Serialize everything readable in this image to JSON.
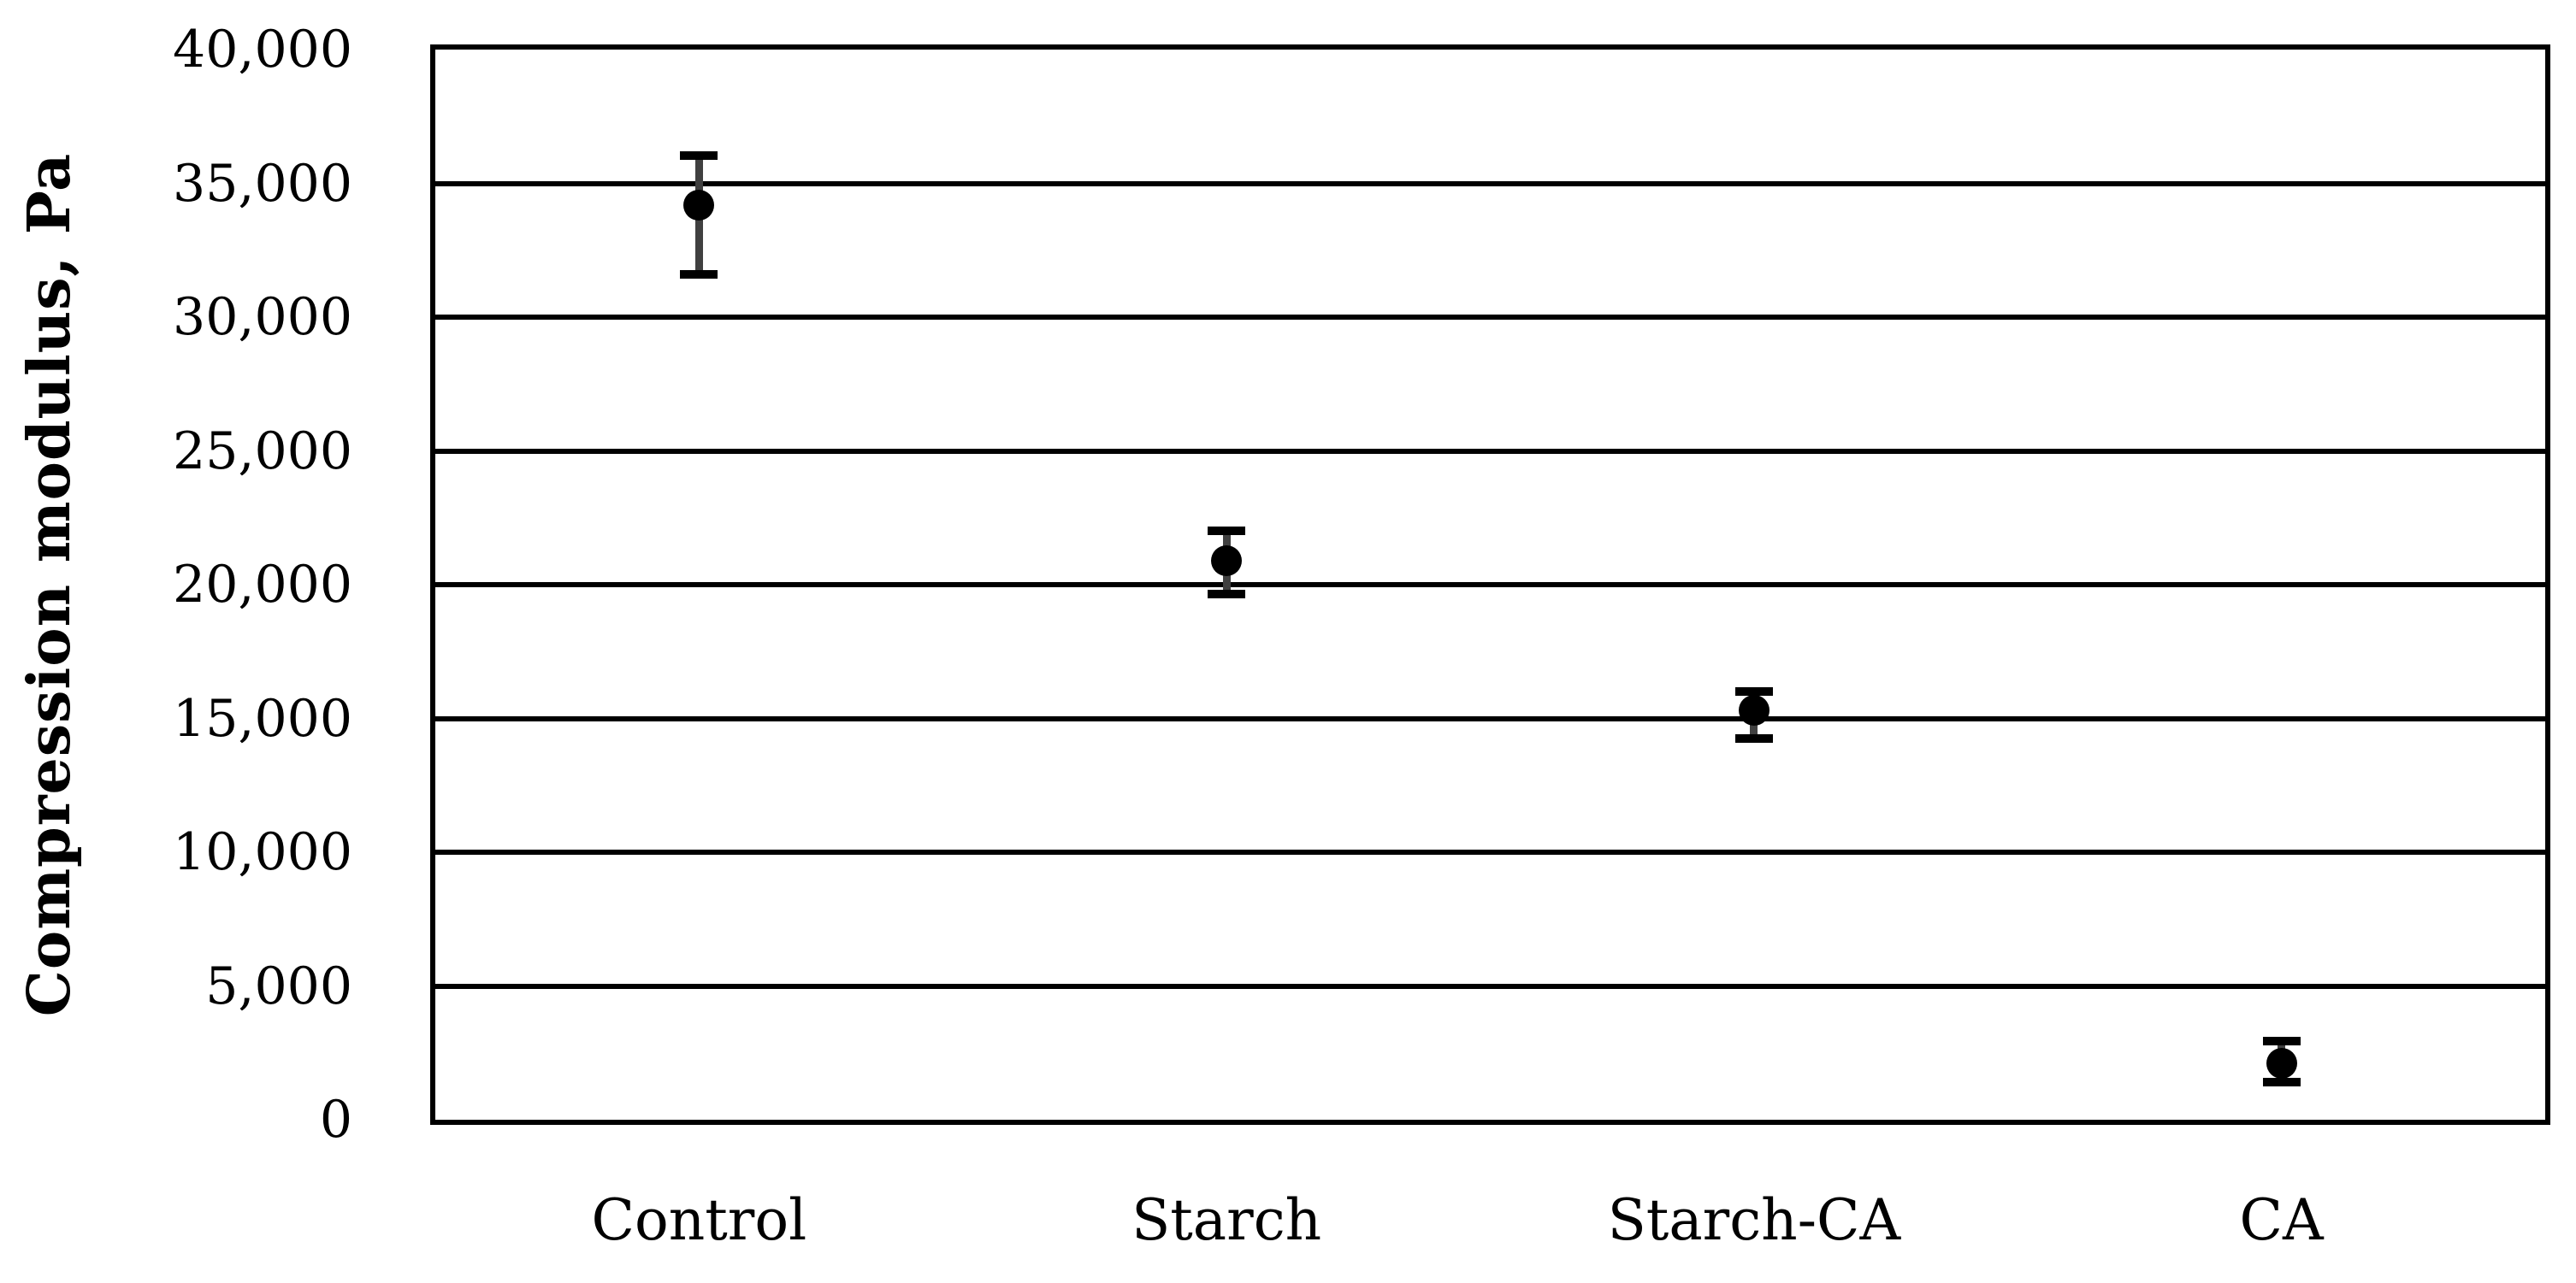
{
  "chart_data": {
    "type": "scatter",
    "title": "",
    "xlabel": "",
    "ylabel": "Compression modulus, Pa",
    "categories": [
      "Control",
      "Starch",
      "Starch-CA",
      "CA"
    ],
    "points": [
      {
        "category": "Control",
        "value": 34200,
        "error_plus": 1850,
        "error_minus": 2600
      },
      {
        "category": "Starch",
        "value": 20900,
        "error_plus": 1100,
        "error_minus": 1250
      },
      {
        "category": "Starch-CA",
        "value": 15300,
        "error_plus": 700,
        "error_minus": 1050
      },
      {
        "category": "CA",
        "value": 2100,
        "error_plus": 850,
        "error_minus": 700
      }
    ],
    "ylim": [
      0,
      40000
    ],
    "ytick_step": 5000,
    "ytick_labels": [
      "0",
      "5,000",
      "10,000",
      "15,000",
      "20,000",
      "25,000",
      "30,000",
      "35,000",
      "40,000"
    ],
    "grid": true,
    "legend": false,
    "marker": "circle",
    "colors": {
      "marker": "#000000",
      "error_stem": "#404040",
      "error_cap": "#000000",
      "grid": "#000000",
      "background": "#ffffff"
    }
  }
}
